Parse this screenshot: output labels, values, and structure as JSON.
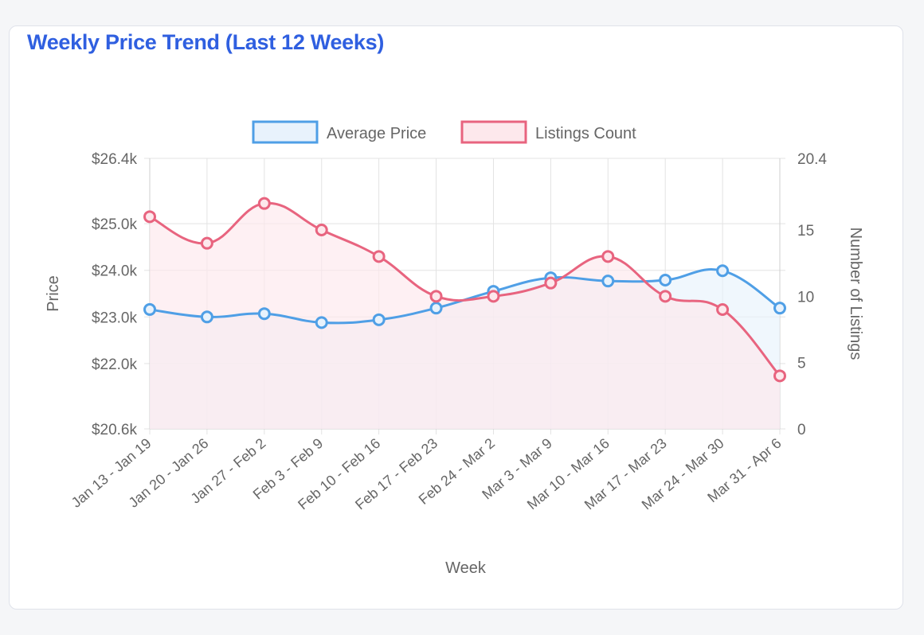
{
  "card": {
    "title": "Weekly Price Trend (Last 12 Weeks)"
  },
  "chart_data": {
    "type": "line",
    "title": "Weekly Price Trend (Last 12 Weeks)",
    "xlabel": "Week",
    "ylabel": "Price",
    "y2label": "Number of Listings",
    "categories": [
      "Jan 13 - Jan 19",
      "Jan 20 - Jan 26",
      "Jan 27 - Feb 2",
      "Feb 3 - Feb 9",
      "Feb 10 - Feb 16",
      "Feb 17 - Feb 23",
      "Feb 24 - Mar 2",
      "Mar 3 - Mar 9",
      "Mar 10 - Mar 16",
      "Mar 17 - Mar 23",
      "Mar 24 - Mar 30",
      "Mar 31 - Apr 6"
    ],
    "series": [
      {
        "name": "Average Price",
        "axis": "left",
        "color": "#4f9fe6",
        "fill": "#e8f2fc",
        "values": [
          23160,
          23000,
          23070,
          22880,
          22940,
          23190,
          23550,
          23840,
          23770,
          23790,
          23990,
          23190
        ]
      },
      {
        "name": "Listings Count",
        "axis": "right",
        "color": "#e8647f",
        "fill": "#fde8ec",
        "values": [
          16,
          14,
          17,
          15,
          13,
          10,
          10,
          11,
          13,
          10,
          9,
          4
        ]
      }
    ],
    "ylim": [
      20600,
      26400
    ],
    "yticks": [
      "$20.6k",
      "$22.0k",
      "$23.0k",
      "$24.0k",
      "$25.0k",
      "$26.4k"
    ],
    "ytick_values": [
      20600,
      22000,
      23000,
      24000,
      25000,
      26400
    ],
    "y2lim": [
      0,
      20.4
    ],
    "y2ticks": [
      "0",
      "5",
      "10",
      "15",
      "20.4"
    ],
    "y2tick_values": [
      0,
      5,
      10,
      15,
      20.4
    ],
    "grid": true,
    "legend": "top-center"
  }
}
